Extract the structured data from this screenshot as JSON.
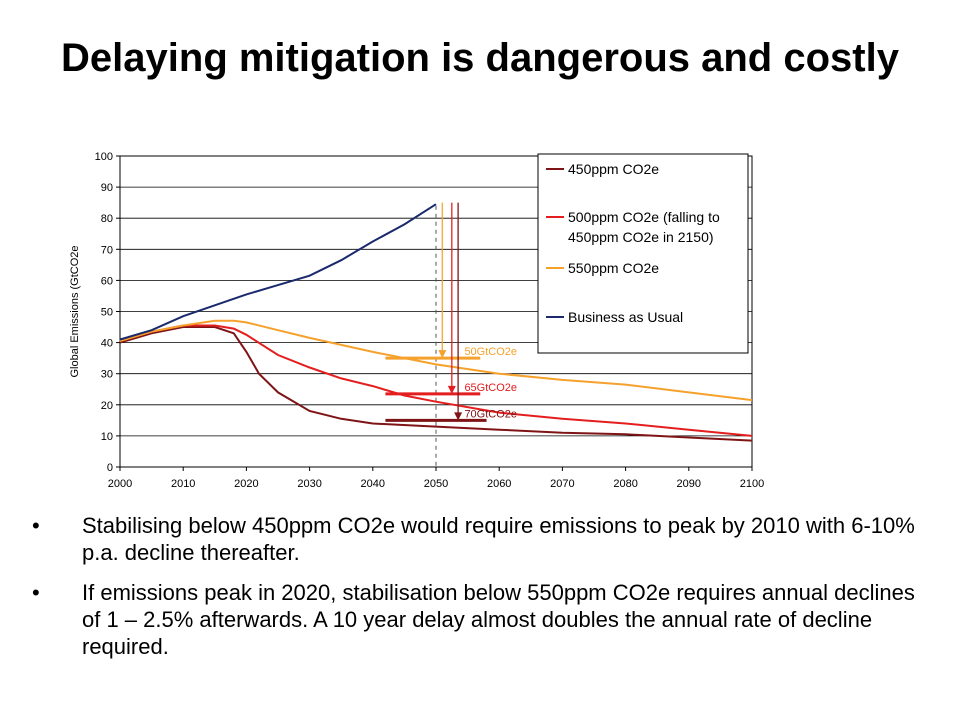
{
  "slide": {
    "title": "Delaying mitigation is dangerous and costly",
    "bullets": [
      "Stabilising below 450ppm CO2e would require emissions to peak by 2010 with 6-10% p.a. decline thereafter.",
      "If emissions peak in 2020, stabilisation below 550ppm CO2e requires annual declines of 1 – 2.5% afterwards. A 10 year delay almost doubles the annual rate of decline required."
    ],
    "bullet_glyph": "•"
  },
  "chart_data": {
    "type": "line",
    "title": "",
    "xlabel": "",
    "ylabel": "Global Emissions (GtCO2e",
    "xlim": [
      2000,
      2100
    ],
    "ylim": [
      0,
      100
    ],
    "x_ticks": [
      2000,
      2010,
      2020,
      2030,
      2040,
      2050,
      2060,
      2070,
      2080,
      2090,
      2100
    ],
    "y_ticks": [
      0,
      10,
      20,
      30,
      40,
      50,
      60,
      70,
      80,
      90,
      100
    ],
    "grid": true,
    "legend_position": "top-right",
    "series": [
      {
        "name": "450ppm CO2e",
        "color": "#7f1416",
        "points": [
          [
            2000,
            40
          ],
          [
            2005,
            43
          ],
          [
            2010,
            45
          ],
          [
            2015,
            45
          ],
          [
            2018,
            43
          ],
          [
            2020,
            37
          ],
          [
            2022,
            30
          ],
          [
            2025,
            24
          ],
          [
            2030,
            18
          ],
          [
            2035,
            15.5
          ],
          [
            2040,
            14
          ],
          [
            2050,
            13
          ],
          [
            2060,
            12
          ],
          [
            2070,
            11
          ],
          [
            2080,
            10.5
          ],
          [
            2090,
            9.5
          ],
          [
            2100,
            8.5
          ]
        ]
      },
      {
        "name": "500ppm CO2e (falling to 450ppm CO2e in 2150)",
        "color": "#e41e1e",
        "points": [
          [
            2000,
            40.5
          ],
          [
            2005,
            43.5
          ],
          [
            2010,
            45.5
          ],
          [
            2015,
            45.5
          ],
          [
            2018,
            44.5
          ],
          [
            2020,
            42.5
          ],
          [
            2025,
            36
          ],
          [
            2030,
            32
          ],
          [
            2035,
            28.5
          ],
          [
            2040,
            26
          ],
          [
            2045,
            23
          ],
          [
            2050,
            21
          ],
          [
            2060,
            17.5
          ],
          [
            2070,
            15.5
          ],
          [
            2080,
            14
          ],
          [
            2090,
            12
          ],
          [
            2100,
            10
          ]
        ]
      },
      {
        "name": "550ppm CO2e",
        "color": "#f5a12c",
        "points": [
          [
            2000,
            40.5
          ],
          [
            2005,
            43.5
          ],
          [
            2010,
            45.5
          ],
          [
            2015,
            47
          ],
          [
            2018,
            47
          ],
          [
            2020,
            46.5
          ],
          [
            2025,
            44
          ],
          [
            2030,
            41.5
          ],
          [
            2040,
            37
          ],
          [
            2050,
            33
          ],
          [
            2060,
            30
          ],
          [
            2070,
            28
          ],
          [
            2080,
            26.5
          ],
          [
            2090,
            24
          ],
          [
            2100,
            21.5
          ]
        ]
      },
      {
        "name": "Business as Usual",
        "color": "#1a2a6c",
        "points": [
          [
            2000,
            41
          ],
          [
            2005,
            44
          ],
          [
            2010,
            48.5
          ],
          [
            2015,
            52
          ],
          [
            2020,
            55.5
          ],
          [
            2025,
            58.5
          ],
          [
            2030,
            61.5
          ],
          [
            2035,
            66.5
          ],
          [
            2040,
            72.5
          ],
          [
            2045,
            78
          ],
          [
            2050,
            84.5
          ]
        ]
      }
    ],
    "annotations": [
      {
        "label": "50GtCO2e",
        "color": "#f5a12c",
        "y": 35,
        "bar_x": [
          2042,
          2057
        ],
        "arrow_x": 2051,
        "arrow_from": 85,
        "arrow_to": 35
      },
      {
        "label": "65GtCO2e",
        "color": "#e41e1e",
        "y": 23.5,
        "bar_x": [
          2042,
          2057
        ],
        "arrow_x": 2052.5,
        "arrow_from": 85,
        "arrow_to": 23.5
      },
      {
        "label": "70GtCO2e",
        "color": "#7f1416",
        "y": 15,
        "bar_x": [
          2042,
          2058
        ],
        "arrow_x": 2053.5,
        "arrow_from": 85,
        "arrow_to": 15
      }
    ],
    "reference_line": {
      "x": 2050,
      "style": "dashed"
    }
  }
}
